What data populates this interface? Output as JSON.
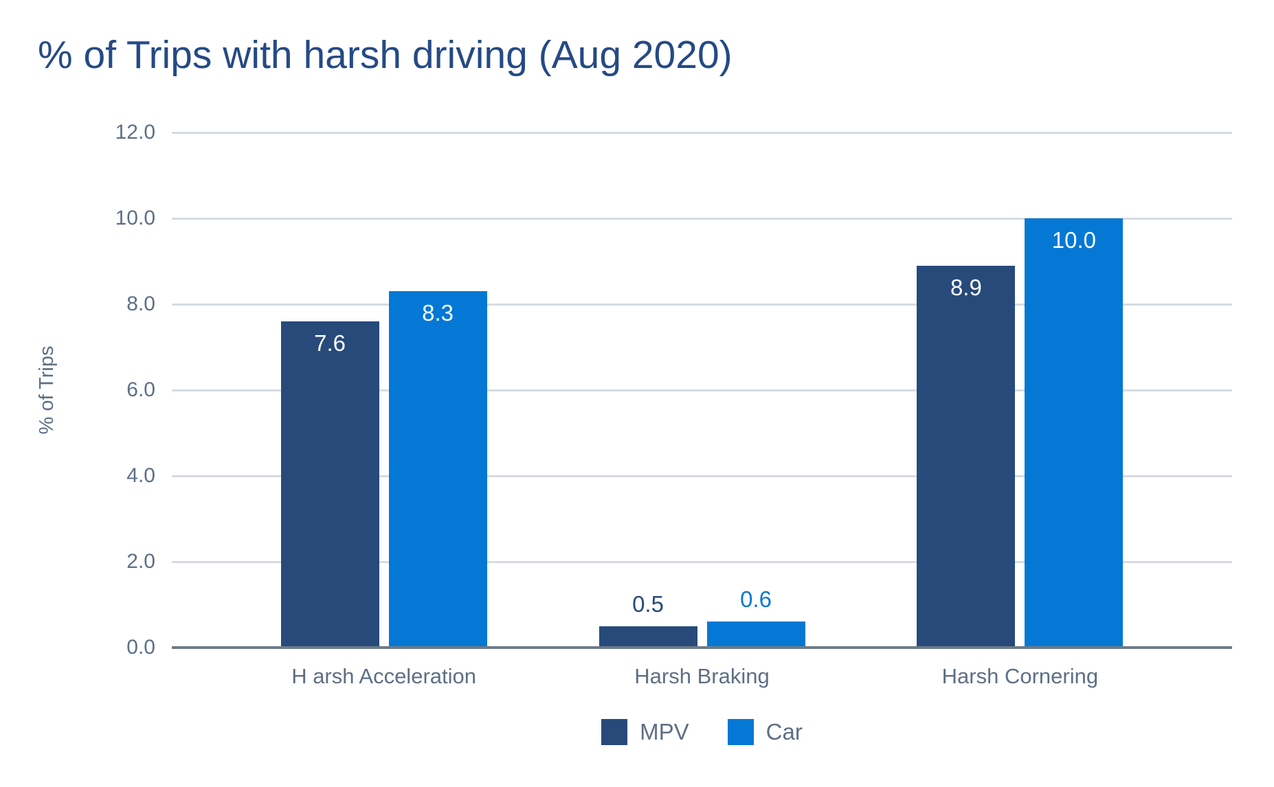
{
  "title": "% of Trips with harsh driving (Aug 2020)",
  "chart_data": {
    "type": "bar",
    "title": "% of Trips with harsh driving (Aug 2020)",
    "categories": [
      "H arsh Acceleration",
      "Harsh Braking",
      "Harsh Cornering"
    ],
    "series": [
      {
        "name": "MPV",
        "color": "#274A7B",
        "values": [
          7.6,
          0.5,
          8.9
        ],
        "value_labels": [
          "7.6",
          "0.5",
          "8.9"
        ]
      },
      {
        "name": "Car",
        "color": "#0478D4",
        "values": [
          8.3,
          0.6,
          10.0
        ],
        "value_labels": [
          "8.3",
          "0.6",
          "10.0"
        ]
      }
    ],
    "xlabel": "",
    "ylabel": "% of Trips",
    "ylim": [
      0,
      12
    ],
    "ytick_labels": [
      "0.0",
      "2.0",
      "4.0",
      "6.0",
      "8.0",
      "10.0",
      "12.0"
    ],
    "grid": true,
    "legend_position": "bottom",
    "value_label_inside_color": "#FFFFFF"
  },
  "colors": {
    "title_text": "#254A85",
    "axis_text": "#5D6F85",
    "gridline": "#D6DBE2",
    "baseline": "#6E7B89",
    "background": "#FFFFFF"
  }
}
